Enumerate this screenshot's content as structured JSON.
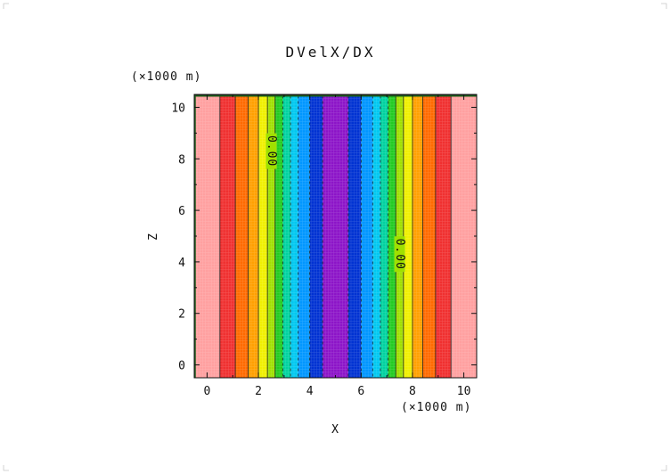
{
  "chart_data": {
    "type": "heatmap",
    "title": "DVelX/DX",
    "xlabel": "X",
    "ylabel": "Z",
    "x_unit": "(×1000 m)",
    "y_unit": "(×1000 m)",
    "xlim": [
      -0.5,
      10.5
    ],
    "ylim": [
      -0.5,
      10.5
    ],
    "x_ticks": [
      0,
      2,
      4,
      6,
      8,
      10
    ],
    "y_ticks": [
      0,
      2,
      4,
      6,
      8,
      10
    ],
    "grid": false,
    "bands": [
      {
        "x0": -0.5,
        "x1": 0.5,
        "color": "#ffa0a0"
      },
      {
        "x0": 0.5,
        "x1": 1.1,
        "color": "#f03030"
      },
      {
        "x0": 1.1,
        "x1": 1.6,
        "color": "#ff6a00"
      },
      {
        "x0": 1.6,
        "x1": 2.0,
        "color": "#ffa000"
      },
      {
        "x0": 2.0,
        "x1": 2.35,
        "color": "#f0f000"
      },
      {
        "x0": 2.35,
        "x1": 2.65,
        "color": "#a0e000"
      },
      {
        "x0": 2.65,
        "x1": 2.95,
        "color": "#22cc22"
      },
      {
        "x0": 2.95,
        "x1": 3.25,
        "color": "#00d2a0"
      },
      {
        "x0": 3.25,
        "x1": 3.55,
        "color": "#00c8f0"
      },
      {
        "x0": 3.55,
        "x1": 4.0,
        "color": "#0096ff"
      },
      {
        "x0": 4.0,
        "x1": 4.5,
        "color": "#0032d2"
      },
      {
        "x0": 4.5,
        "x1": 5.5,
        "color": "#8c14c8"
      },
      {
        "x0": 5.5,
        "x1": 6.0,
        "color": "#0032d2"
      },
      {
        "x0": 6.0,
        "x1": 6.45,
        "color": "#0096ff"
      },
      {
        "x0": 6.45,
        "x1": 6.75,
        "color": "#00c8f0"
      },
      {
        "x0": 6.75,
        "x1": 7.05,
        "color": "#00d2a0"
      },
      {
        "x0": 7.05,
        "x1": 7.35,
        "color": "#22cc22"
      },
      {
        "x0": 7.35,
        "x1": 7.65,
        "color": "#a0e000"
      },
      {
        "x0": 7.65,
        "x1": 8.0,
        "color": "#f0f000"
      },
      {
        "x0": 8.0,
        "x1": 8.4,
        "color": "#ffa000"
      },
      {
        "x0": 8.4,
        "x1": 8.9,
        "color": "#ff6a00"
      },
      {
        "x0": 8.9,
        "x1": 9.5,
        "color": "#f03030"
      },
      {
        "x0": 9.5,
        "x1": 10.5,
        "color": "#ffa0a0"
      }
    ],
    "contour_lines": [
      {
        "x": 0.5,
        "dashed": false
      },
      {
        "x": 1.1,
        "dashed": false
      },
      {
        "x": 1.6,
        "dashed": false
      },
      {
        "x": 2.0,
        "dashed": false
      },
      {
        "x": 2.35,
        "dashed": false
      },
      {
        "x": 2.65,
        "dashed": false
      },
      {
        "x": 2.95,
        "dashed": true
      },
      {
        "x": 3.25,
        "dashed": true
      },
      {
        "x": 3.55,
        "dashed": true
      },
      {
        "x": 4.0,
        "dashed": true
      },
      {
        "x": 4.5,
        "dashed": true
      },
      {
        "x": 5.5,
        "dashed": true
      },
      {
        "x": 6.0,
        "dashed": true
      },
      {
        "x": 6.45,
        "dashed": true
      },
      {
        "x": 6.75,
        "dashed": true
      },
      {
        "x": 7.05,
        "dashed": true
      },
      {
        "x": 7.35,
        "dashed": false
      },
      {
        "x": 7.65,
        "dashed": false
      },
      {
        "x": 8.0,
        "dashed": false
      },
      {
        "x": 8.4,
        "dashed": false
      },
      {
        "x": 8.9,
        "dashed": false
      },
      {
        "x": 9.5,
        "dashed": false
      }
    ],
    "contour_labels": [
      {
        "text": "0.00",
        "x": 2.5,
        "z": 8.3
      },
      {
        "text": "0.00",
        "x": 7.5,
        "z": 4.3
      }
    ],
    "top_boundary_z": 10.45
  }
}
